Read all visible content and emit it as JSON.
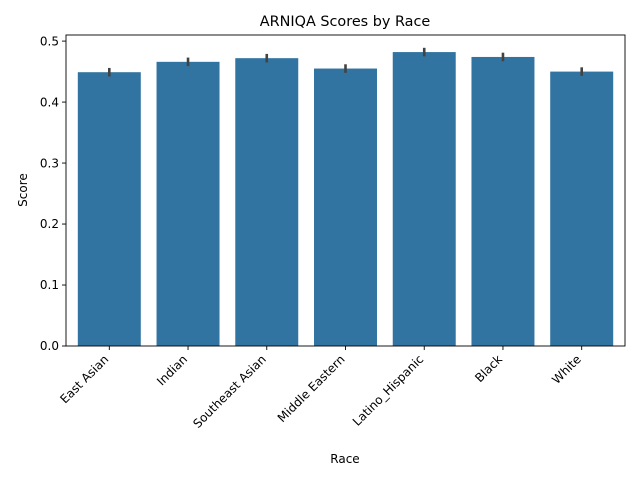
{
  "chart_data": {
    "type": "bar",
    "title": "ARNIQA Scores by Race",
    "xlabel": "Race",
    "ylabel": "Score",
    "categories": [
      "East Asian",
      "Indian",
      "Southeast Asian",
      "Middle Eastern",
      "Latino_Hispanic",
      "Black",
      "White"
    ],
    "values": [
      0.449,
      0.466,
      0.472,
      0.455,
      0.482,
      0.474,
      0.45
    ],
    "error_low": [
      0.442,
      0.459,
      0.465,
      0.448,
      0.475,
      0.467,
      0.443
    ],
    "error_high": [
      0.456,
      0.473,
      0.479,
      0.462,
      0.489,
      0.481,
      0.457
    ],
    "ylim": [
      0,
      0.51
    ],
    "yticks": [
      0.0,
      0.1,
      0.2,
      0.3,
      0.4,
      0.5
    ],
    "ytick_labels": [
      "0.0",
      "0.1",
      "0.2",
      "0.3",
      "0.4",
      "0.5"
    ],
    "grid": false,
    "colors": {
      "bar": "#3274a1",
      "error": "#424242",
      "axis": "#000000"
    }
  }
}
